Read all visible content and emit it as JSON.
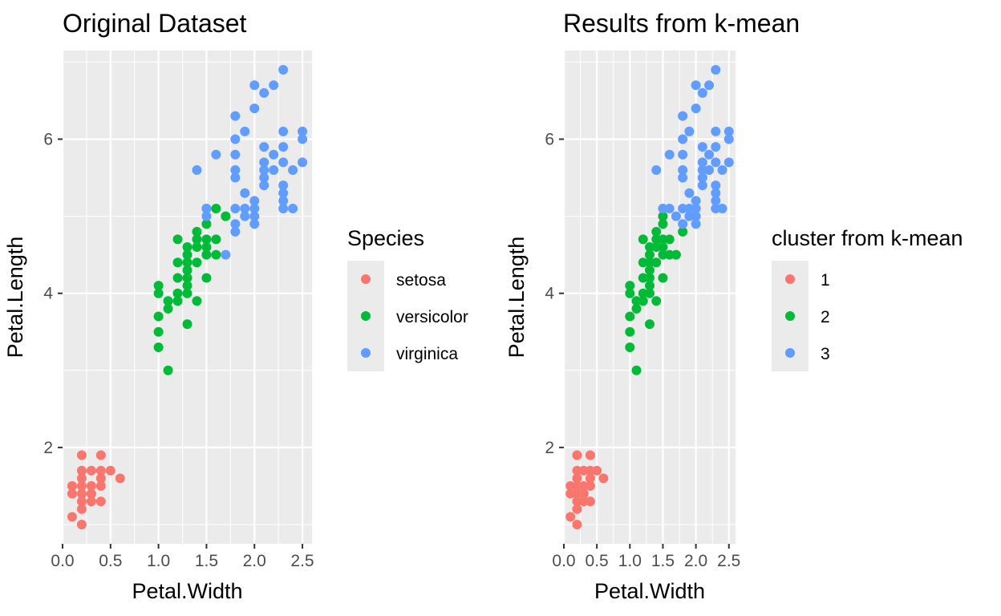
{
  "colors": {
    "setosa": "#F8766D",
    "versicolor": "#00BA38",
    "virginica": "#619CFF",
    "panel_bg": "#EBEBEB",
    "grid": "#FFFFFF",
    "tick": "#333333"
  },
  "chart_data": [
    {
      "type": "scatter",
      "title": "Original Dataset",
      "xlabel": "Petal.Width",
      "ylabel": "Petal.Length",
      "xlim": [
        0.0,
        2.6
      ],
      "ylim": [
        0.75,
        7.15
      ],
      "xticks": [
        "0.0",
        "0.5",
        "1.0",
        "1.5",
        "2.0",
        "2.5"
      ],
      "yticks": [
        "2",
        "4",
        "6"
      ],
      "grid": true,
      "legend": {
        "title": "Species",
        "placement": "right",
        "labels": [
          "setosa",
          "versicolor",
          "virginica"
        ]
      },
      "series": [
        {
          "name": "setosa",
          "points": [
            [
              0.1,
              1.5
            ],
            [
              0.1,
              1.4
            ],
            [
              0.1,
              1.1
            ],
            [
              0.2,
              1.9
            ],
            [
              0.2,
              1.7
            ],
            [
              0.2,
              1.6
            ],
            [
              0.2,
              1.5
            ],
            [
              0.2,
              1.4
            ],
            [
              0.2,
              1.3
            ],
            [
              0.2,
              1.2
            ],
            [
              0.2,
              1.0
            ],
            [
              0.3,
              1.7
            ],
            [
              0.3,
              1.5
            ],
            [
              0.3,
              1.4
            ],
            [
              0.3,
              1.3
            ],
            [
              0.4,
              1.9
            ],
            [
              0.4,
              1.7
            ],
            [
              0.4,
              1.6
            ],
            [
              0.4,
              1.5
            ],
            [
              0.4,
              1.3
            ],
            [
              0.5,
              1.7
            ],
            [
              0.6,
              1.6
            ]
          ]
        },
        {
          "name": "versicolor",
          "points": [
            [
              1.0,
              4.1
            ],
            [
              1.0,
              4.0
            ],
            [
              1.0,
              3.7
            ],
            [
              1.0,
              3.5
            ],
            [
              1.0,
              3.3
            ],
            [
              1.1,
              3.9
            ],
            [
              1.1,
              3.8
            ],
            [
              1.1,
              3.0
            ],
            [
              1.2,
              4.7
            ],
            [
              1.2,
              4.4
            ],
            [
              1.2,
              4.2
            ],
            [
              1.2,
              4.0
            ],
            [
              1.2,
              3.9
            ],
            [
              1.3,
              4.6
            ],
            [
              1.3,
              4.5
            ],
            [
              1.3,
              4.4
            ],
            [
              1.3,
              4.3
            ],
            [
              1.3,
              4.2
            ],
            [
              1.3,
              4.1
            ],
            [
              1.3,
              4.0
            ],
            [
              1.3,
              3.6
            ],
            [
              1.4,
              4.8
            ],
            [
              1.4,
              4.7
            ],
            [
              1.4,
              4.6
            ],
            [
              1.4,
              4.4
            ],
            [
              1.4,
              3.9
            ],
            [
              1.5,
              5.1
            ],
            [
              1.5,
              4.9
            ],
            [
              1.5,
              4.7
            ],
            [
              1.5,
              4.6
            ],
            [
              1.5,
              4.5
            ],
            [
              1.5,
              4.2
            ],
            [
              1.6,
              5.1
            ],
            [
              1.6,
              4.7
            ],
            [
              1.6,
              4.5
            ],
            [
              1.7,
              5.0
            ]
          ]
        },
        {
          "name": "virginica",
          "points": [
            [
              1.4,
              5.6
            ],
            [
              1.5,
              5.1
            ],
            [
              1.5,
              5.0
            ],
            [
              1.6,
              5.8
            ],
            [
              1.7,
              4.5
            ],
            [
              1.8,
              6.3
            ],
            [
              1.8,
              6.0
            ],
            [
              1.8,
              5.8
            ],
            [
              1.8,
              5.6
            ],
            [
              1.8,
              5.5
            ],
            [
              1.8,
              5.1
            ],
            [
              1.8,
              4.9
            ],
            [
              1.8,
              4.8
            ],
            [
              1.9,
              6.1
            ],
            [
              1.9,
              5.3
            ],
            [
              1.9,
              5.1
            ],
            [
              1.9,
              5.0
            ],
            [
              2.0,
              6.7
            ],
            [
              2.0,
              6.4
            ],
            [
              2.0,
              5.2
            ],
            [
              2.0,
              5.1
            ],
            [
              2.0,
              5.0
            ],
            [
              2.0,
              4.9
            ],
            [
              2.1,
              6.6
            ],
            [
              2.1,
              5.9
            ],
            [
              2.1,
              5.7
            ],
            [
              2.1,
              5.6
            ],
            [
              2.1,
              5.5
            ],
            [
              2.1,
              5.4
            ],
            [
              2.2,
              6.7
            ],
            [
              2.2,
              5.8
            ],
            [
              2.2,
              5.6
            ],
            [
              2.3,
              6.9
            ],
            [
              2.3,
              6.1
            ],
            [
              2.3,
              5.9
            ],
            [
              2.3,
              5.7
            ],
            [
              2.3,
              5.4
            ],
            [
              2.3,
              5.3
            ],
            [
              2.3,
              5.2
            ],
            [
              2.3,
              5.1
            ],
            [
              2.4,
              5.6
            ],
            [
              2.4,
              5.1
            ],
            [
              2.5,
              6.1
            ],
            [
              2.5,
              6.0
            ],
            [
              2.5,
              5.7
            ]
          ]
        }
      ]
    },
    {
      "type": "scatter",
      "title": "Results from k-mean",
      "xlabel": "Petal.Width",
      "ylabel": "Petal.Length",
      "xlim": [
        0.0,
        2.6
      ],
      "ylim": [
        0.75,
        7.15
      ],
      "xticks": [
        "0.0",
        "0.5",
        "1.0",
        "1.5",
        "2.0",
        "2.5"
      ],
      "yticks": [
        "2",
        "4",
        "6"
      ],
      "grid": true,
      "legend": {
        "title": "cluster from k-mean",
        "placement": "right",
        "labels": [
          "1",
          "2",
          "3"
        ]
      },
      "series": [
        {
          "name": "1",
          "points": [
            [
              0.1,
              1.5
            ],
            [
              0.1,
              1.4
            ],
            [
              0.1,
              1.1
            ],
            [
              0.2,
              1.9
            ],
            [
              0.2,
              1.7
            ],
            [
              0.2,
              1.6
            ],
            [
              0.2,
              1.5
            ],
            [
              0.2,
              1.4
            ],
            [
              0.2,
              1.3
            ],
            [
              0.2,
              1.2
            ],
            [
              0.2,
              1.0
            ],
            [
              0.3,
              1.7
            ],
            [
              0.3,
              1.5
            ],
            [
              0.3,
              1.4
            ],
            [
              0.3,
              1.3
            ],
            [
              0.4,
              1.9
            ],
            [
              0.4,
              1.7
            ],
            [
              0.4,
              1.6
            ],
            [
              0.4,
              1.5
            ],
            [
              0.4,
              1.3
            ],
            [
              0.5,
              1.7
            ],
            [
              0.6,
              1.6
            ]
          ]
        },
        {
          "name": "2",
          "points": [
            [
              1.0,
              4.1
            ],
            [
              1.0,
              4.0
            ],
            [
              1.0,
              3.7
            ],
            [
              1.0,
              3.5
            ],
            [
              1.0,
              3.3
            ],
            [
              1.1,
              3.9
            ],
            [
              1.1,
              3.8
            ],
            [
              1.1,
              3.0
            ],
            [
              1.2,
              4.7
            ],
            [
              1.2,
              4.4
            ],
            [
              1.2,
              4.2
            ],
            [
              1.2,
              4.0
            ],
            [
              1.2,
              3.9
            ],
            [
              1.3,
              4.6
            ],
            [
              1.3,
              4.5
            ],
            [
              1.3,
              4.4
            ],
            [
              1.3,
              4.3
            ],
            [
              1.3,
              4.2
            ],
            [
              1.3,
              4.1
            ],
            [
              1.3,
              4.0
            ],
            [
              1.3,
              3.6
            ],
            [
              1.4,
              4.8
            ],
            [
              1.4,
              4.7
            ],
            [
              1.4,
              4.6
            ],
            [
              1.4,
              4.4
            ],
            [
              1.4,
              3.9
            ],
            [
              1.5,
              5.0
            ],
            [
              1.5,
              4.9
            ],
            [
              1.5,
              4.7
            ],
            [
              1.5,
              4.6
            ],
            [
              1.5,
              4.5
            ],
            [
              1.5,
              4.2
            ],
            [
              1.6,
              4.7
            ],
            [
              1.6,
              4.5
            ],
            [
              1.7,
              4.5
            ],
            [
              1.8,
              4.8
            ]
          ]
        },
        {
          "name": "3",
          "points": [
            [
              1.4,
              5.6
            ],
            [
              1.5,
              5.1
            ],
            [
              1.6,
              5.8
            ],
            [
              1.6,
              5.1
            ],
            [
              1.7,
              5.0
            ],
            [
              1.8,
              6.3
            ],
            [
              1.8,
              6.0
            ],
            [
              1.8,
              5.8
            ],
            [
              1.8,
              5.6
            ],
            [
              1.8,
              5.5
            ],
            [
              1.8,
              5.1
            ],
            [
              1.8,
              4.9
            ],
            [
              1.9,
              6.1
            ],
            [
              1.9,
              5.3
            ],
            [
              1.9,
              5.1
            ],
            [
              1.9,
              5.0
            ],
            [
              2.0,
              6.7
            ],
            [
              2.0,
              6.4
            ],
            [
              2.0,
              5.2
            ],
            [
              2.0,
              5.1
            ],
            [
              2.0,
              5.0
            ],
            [
              2.0,
              4.9
            ],
            [
              2.1,
              6.6
            ],
            [
              2.1,
              5.9
            ],
            [
              2.1,
              5.7
            ],
            [
              2.1,
              5.6
            ],
            [
              2.1,
              5.5
            ],
            [
              2.1,
              5.4
            ],
            [
              2.2,
              6.7
            ],
            [
              2.2,
              5.8
            ],
            [
              2.2,
              5.6
            ],
            [
              2.3,
              6.9
            ],
            [
              2.3,
              6.1
            ],
            [
              2.3,
              5.9
            ],
            [
              2.3,
              5.7
            ],
            [
              2.3,
              5.4
            ],
            [
              2.3,
              5.3
            ],
            [
              2.3,
              5.2
            ],
            [
              2.3,
              5.1
            ],
            [
              2.4,
              5.6
            ],
            [
              2.4,
              5.1
            ],
            [
              2.5,
              6.1
            ],
            [
              2.5,
              6.0
            ],
            [
              2.5,
              5.7
            ]
          ]
        }
      ]
    }
  ]
}
